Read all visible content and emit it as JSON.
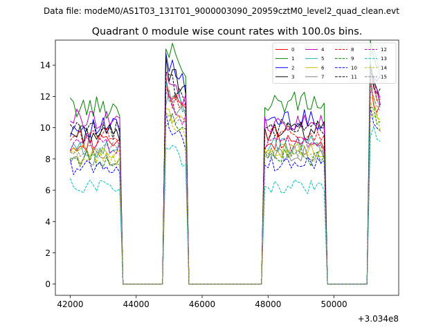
{
  "figure": {
    "suptitle": "Data file: modeM0/AS1T03_131T01_9000003090_20959cztM0_level2_quad_clean.evt"
  },
  "chart_data": {
    "type": "line",
    "title": "Quadrant 0 module wise count rates with 100.0s bins.",
    "xlabel": "",
    "ylabel": "",
    "x_offset_label": "+3.034e8",
    "x_offset": 303400000,
    "xlim": [
      41550,
      51960
    ],
    "ylim": [
      -0.72,
      15.6
    ],
    "xticks": [
      42000,
      44000,
      46000,
      48000,
      50000
    ],
    "xtick_labels": [
      "42000",
      "44000",
      "46000",
      "48000",
      "50000"
    ],
    "yticks": [
      0,
      2,
      4,
      6,
      8,
      10,
      12,
      14
    ],
    "ytick_labels": [
      "0",
      "2",
      "4",
      "6",
      "8",
      "10",
      "12",
      "14"
    ],
    "grid": false,
    "legend_position": "upper right",
    "legend_columns": 4,
    "bin_width": 100,
    "x_start": 42000,
    "segments": [
      {
        "start": 42000,
        "end": 43500
      },
      {
        "start": 44900,
        "end": 45500
      },
      {
        "start": 47900,
        "end": 49700
      },
      {
        "start": 51100,
        "end": 51400
      }
    ],
    "zero_level": 0,
    "series": [
      {
        "name": "0",
        "color": "#ff0000",
        "dash": "solid",
        "levels": [
          9.1,
          11.9,
          9.2,
          12.0
        ]
      },
      {
        "name": "1",
        "color": "#008000",
        "dash": "solid",
        "levels": [
          11.3,
          14.4,
          11.6,
          14.2
        ]
      },
      {
        "name": "2",
        "color": "#0000ff",
        "dash": "solid",
        "levels": [
          10.0,
          13.9,
          10.5,
          13.7
        ]
      },
      {
        "name": "3",
        "color": "#000000",
        "dash": "solid",
        "levels": [
          9.6,
          13.1,
          9.8,
          12.9
        ]
      },
      {
        "name": "4",
        "color": "#bf00bf",
        "dash": "solid",
        "levels": [
          10.6,
          12.5,
          10.3,
          12.8
        ]
      },
      {
        "name": "5",
        "color": "#20b2aa",
        "dash": "solid",
        "levels": [
          8.6,
          12.0,
          8.9,
          14.6
        ]
      },
      {
        "name": "6",
        "color": "#bfbf00",
        "dash": "solid",
        "levels": [
          8.4,
          10.9,
          8.5,
          11.3
        ]
      },
      {
        "name": "7",
        "color": "#808080",
        "dash": "solid",
        "levels": [
          8.1,
          11.4,
          8.4,
          12.2
        ]
      },
      {
        "name": "8",
        "color": "#ff0000",
        "dash": "dashed",
        "levels": [
          9.4,
          11.7,
          9.6,
          12.3
        ]
      },
      {
        "name": "9",
        "color": "#008000",
        "dash": "dashed",
        "levels": [
          8.0,
          10.2,
          8.1,
          11.2
        ]
      },
      {
        "name": "10",
        "color": "#0000ff",
        "dash": "dashed",
        "levels": [
          7.5,
          9.8,
          7.7,
          10.5
        ]
      },
      {
        "name": "11",
        "color": "#000000",
        "dash": "dashed",
        "levels": [
          9.8,
          12.6,
          9.9,
          12.7
        ]
      },
      {
        "name": "12",
        "color": "#bf00bf",
        "dash": "dashed",
        "levels": [
          8.9,
          11.2,
          9.0,
          12.0
        ]
      },
      {
        "name": "13",
        "color": "#00bfbf",
        "dash": "dashed",
        "levels": [
          6.3,
          8.4,
          6.2,
          9.4
        ]
      },
      {
        "name": "14",
        "color": "#bfbf00",
        "dash": "dashed",
        "levels": [
          8.1,
          10.5,
          8.3,
          11.0
        ]
      },
      {
        "name": "15",
        "color": "#808080",
        "dash": "dashed",
        "levels": [
          8.5,
          10.8,
          8.6,
          11.5
        ]
      }
    ]
  }
}
